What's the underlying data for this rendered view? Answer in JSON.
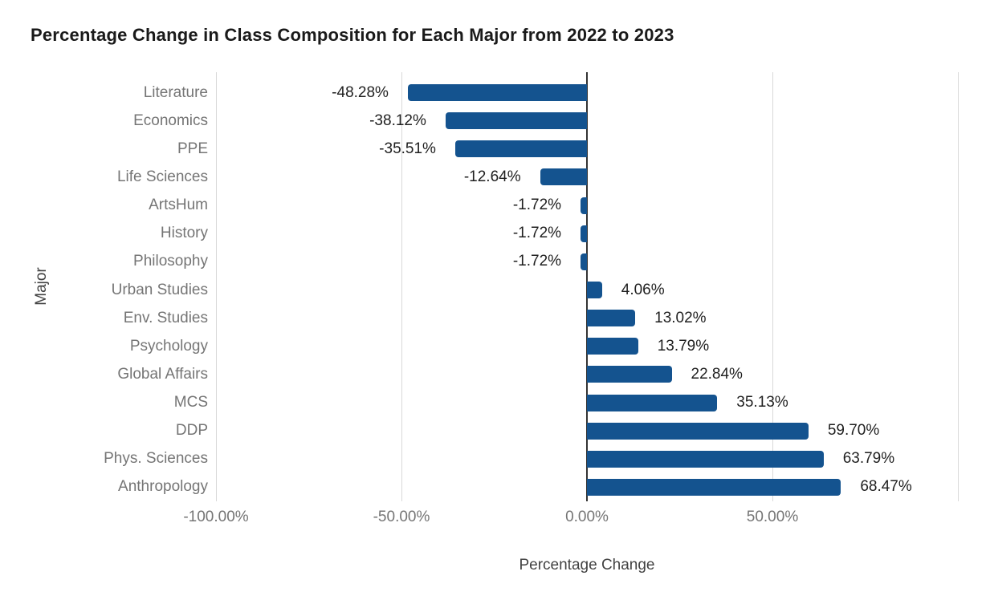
{
  "chart_data": {
    "type": "bar",
    "orientation": "horizontal",
    "title": "Percentage Change in Class Composition for Each Major from 2022 to 2023",
    "xlabel": "Percentage Change",
    "ylabel": "Major",
    "categories": [
      "Literature",
      "Economics",
      "PPE",
      "Life Sciences",
      "ArtsHum",
      "History",
      "Philosophy",
      "Urban Studies",
      "Env. Studies",
      "Psychology",
      "Global Affairs",
      "MCS",
      "DDP",
      "Phys. Sciences",
      "Anthropology"
    ],
    "values": [
      -48.28,
      -38.12,
      -35.51,
      -12.64,
      -1.72,
      -1.72,
      -1.72,
      4.06,
      13.02,
      13.79,
      22.84,
      35.13,
      59.7,
      63.79,
      68.47
    ],
    "value_labels": [
      "-48.28%",
      "-38.12%",
      "-35.51%",
      "-12.64%",
      "-1.72%",
      "-1.72%",
      "-1.72%",
      "4.06%",
      "13.02%",
      "13.79%",
      "22.84%",
      "35.13%",
      "59.70%",
      "63.79%",
      "68.47%"
    ],
    "xlim": [
      -100,
      100
    ],
    "xticks": [
      {
        "value": -100,
        "label": "-100.00%"
      },
      {
        "value": -50,
        "label": "-50.00%"
      },
      {
        "value": 0,
        "label": "0.00%"
      },
      {
        "value": 50,
        "label": "50.00%"
      },
      {
        "value": 100,
        "label": ""
      }
    ],
    "grid": "vertical",
    "legend": "none",
    "colors": {
      "bar": "#14538F",
      "title": "#1A1A1A",
      "category_label": "#757575",
      "value_label": "#1F1F1F",
      "tick_label": "#757575",
      "axis_title": "#424242",
      "gridline": "#D9D9D9",
      "zero_line": "#333333",
      "background": "#FFFFFF"
    }
  }
}
